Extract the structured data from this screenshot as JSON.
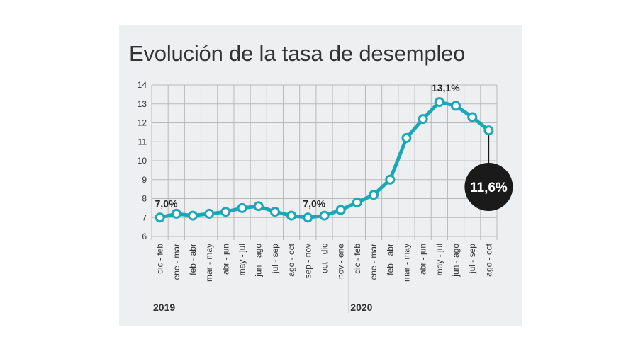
{
  "chart_data": {
    "type": "line",
    "title": "Evolución de la tasa de desempleo",
    "xlabel": "",
    "ylabel": "",
    "ylim": [
      6,
      14
    ],
    "yticks": [
      "6",
      "7",
      "8",
      "9",
      "10",
      "11",
      "12",
      "13",
      "14"
    ],
    "grid": true,
    "categories": [
      "dic - feb",
      "ene - mar",
      "feb - abr",
      "mar - may",
      "abr - jun",
      "may - jul",
      "jun - ago",
      "jul - sep",
      "ago - oct",
      "sep - nov",
      "oct - dic",
      "nov - ene",
      "dic - feb",
      "ene - mar",
      "feb - abr",
      "mar - may",
      "abr - jun",
      "may - jul",
      "jun - ago",
      "jul - sep",
      "ago - oct"
    ],
    "series": [
      {
        "name": "Tasa de desempleo",
        "values": [
          7.0,
          7.2,
          7.1,
          7.2,
          7.3,
          7.5,
          7.6,
          7.3,
          7.1,
          7.0,
          7.1,
          7.4,
          7.8,
          8.2,
          9.0,
          11.2,
          12.2,
          13.1,
          12.9,
          12.3,
          11.6
        ]
      }
    ],
    "year_groups": [
      {
        "label": "2019",
        "start": 0,
        "end": 11
      },
      {
        "label": "2020",
        "start": 12,
        "end": 20
      }
    ],
    "annotations": [
      {
        "label": "7,0%",
        "index": 0,
        "style": "text"
      },
      {
        "label": "7,0%",
        "index": 9,
        "style": "text"
      },
      {
        "label": "13,1%",
        "index": 17,
        "style": "text"
      },
      {
        "label": "11,6%",
        "index": 20,
        "style": "callout"
      }
    ],
    "colors": {
      "line": "#1aa8b8",
      "marker_fill": "#ffffff",
      "grid": "#b9b9b9",
      "axis_text": "#333333",
      "callout_bg": "#1a1a1a",
      "callout_text": "#ffffff"
    }
  }
}
